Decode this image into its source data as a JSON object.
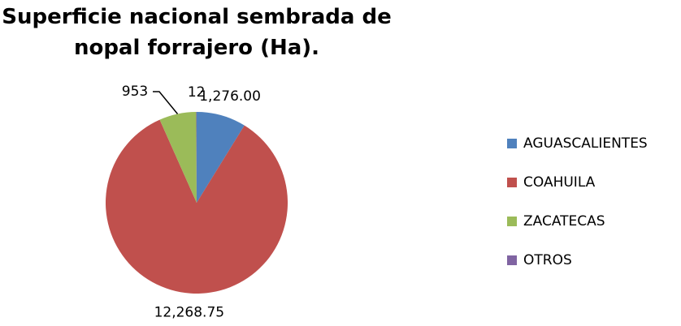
{
  "chart_data": {
    "type": "pie",
    "title": "Superficie nacional sembrada de nopal forrajero (Ha).",
    "categories": [
      "AGUASCALIENTES",
      "COAHUILA",
      "ZACATECAS",
      "OTROS"
    ],
    "values": [
      1276,
      12268.75,
      953,
      12
    ],
    "value_labels": [
      "1,276.00",
      "12,268.75",
      "953",
      "12"
    ],
    "colors": [
      "#4f81bd",
      "#c0504d",
      "#9bbb59",
      "#8064a2"
    ],
    "legend": "right"
  }
}
